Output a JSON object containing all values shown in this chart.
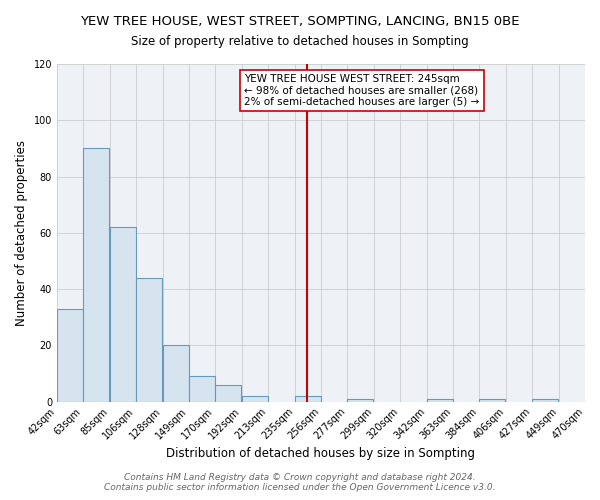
{
  "title": "YEW TREE HOUSE, WEST STREET, SOMPTING, LANCING, BN15 0BE",
  "subtitle": "Size of property relative to detached houses in Sompting",
  "xlabel": "Distribution of detached houses by size in Sompting",
  "ylabel": "Number of detached properties",
  "bin_labels": [
    "42sqm",
    "63sqm",
    "85sqm",
    "106sqm",
    "128sqm",
    "149sqm",
    "170sqm",
    "192sqm",
    "213sqm",
    "235sqm",
    "256sqm",
    "277sqm",
    "299sqm",
    "320sqm",
    "342sqm",
    "363sqm",
    "384sqm",
    "406sqm",
    "427sqm",
    "449sqm",
    "470sqm"
  ],
  "bar_values": [
    33,
    90,
    62,
    44,
    20,
    9,
    6,
    2,
    0,
    2,
    0,
    1,
    0,
    0,
    1,
    0,
    1,
    0,
    1,
    0
  ],
  "bar_left_edges": [
    42,
    63,
    85,
    106,
    128,
    149,
    170,
    192,
    213,
    235,
    256,
    277,
    299,
    320,
    342,
    363,
    384,
    406,
    427,
    449
  ],
  "bin_width": 21,
  "ylim": [
    0,
    120
  ],
  "yticks": [
    0,
    20,
    40,
    60,
    80,
    100,
    120
  ],
  "vline_x": 245,
  "bar_color": "#d6e4f0",
  "bar_edge_color": "#6699bb",
  "vline_color": "#cc0000",
  "annotation_title": "YEW TREE HOUSE WEST STREET: 245sqm",
  "annotation_line1": "← 98% of detached houses are smaller (268)",
  "annotation_line2": "2% of semi-detached houses are larger (5) →",
  "annotation_box_color": "#ffffff",
  "annotation_box_edge": "#cc0000",
  "footer1": "Contains HM Land Registry data © Crown copyright and database right 2024.",
  "footer2": "Contains public sector information licensed under the Open Government Licence v3.0.",
  "background_color": "#ffffff",
  "plot_bg_color": "#eef2f7",
  "grid_color": "#cccccc",
  "title_fontsize": 9.5,
  "subtitle_fontsize": 8.5,
  "axis_label_fontsize": 8.5,
  "tick_fontsize": 7,
  "footer_fontsize": 6.5,
  "annotation_fontsize": 7.5
}
